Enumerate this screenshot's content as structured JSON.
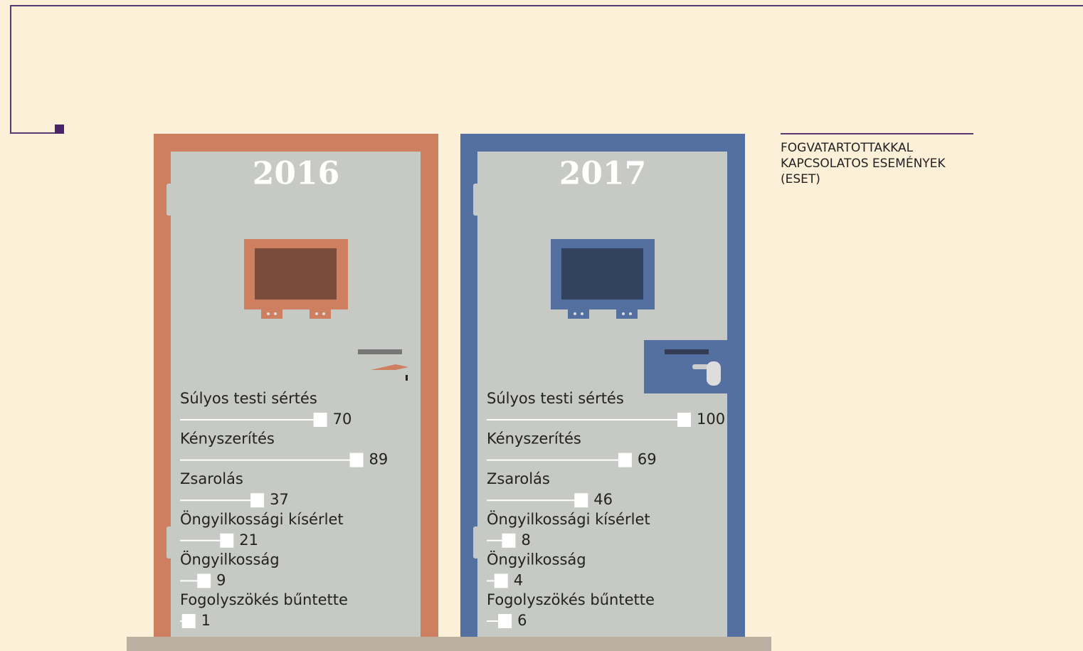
{
  "title": "FOGVATARTOTTAKKAL KAPCSOLATOS ESEMÉNYEK (ESET)",
  "chart_data": [
    {
      "type": "bar",
      "title": "2016",
      "color": "#cd7f60",
      "categories": [
        "Súlyos testi sértés",
        "Kényszerítés",
        "Zsarolás",
        "Öngyilkossági kísérlet",
        "Öngyilkosság",
        "Fogolyszökés bűntette"
      ],
      "values": [
        70,
        89,
        37,
        21,
        9,
        1
      ]
    },
    {
      "type": "bar",
      "title": "2017",
      "color": "#5470a0",
      "categories": [
        "Súlyos testi sértés",
        "Kényszerítés",
        "Zsarolás",
        "Öngyilkossági kísérlet",
        "Öngyilkosság",
        "Fogolyszökés bűntette"
      ],
      "values": [
        100,
        69,
        46,
        8,
        4,
        6
      ]
    }
  ]
}
